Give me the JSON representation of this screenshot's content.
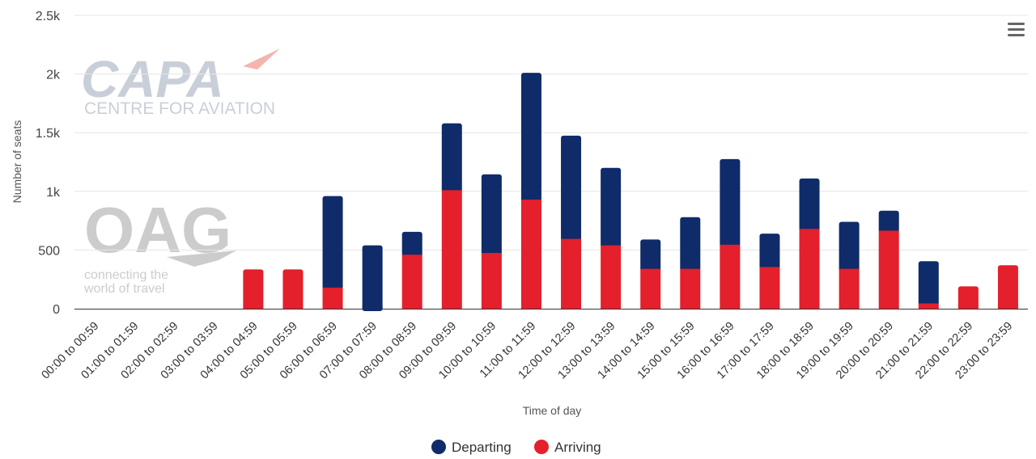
{
  "chart_data": {
    "type": "bar",
    "stacked": true,
    "xlabel": "Time of day",
    "ylabel": "Number of seats",
    "ylim": [
      0,
      2500
    ],
    "yticks": [
      0,
      500,
      1000,
      1500,
      2000,
      2500
    ],
    "ytick_labels": [
      "0",
      "500",
      "1k",
      "1.5k",
      "2k",
      "2.5k"
    ],
    "grid": true,
    "legend_position": "bottom-center",
    "categories": [
      "00:00 to 00:59",
      "01:00 to 01:59",
      "02:00 to 02:59",
      "03:00 to 03:59",
      "04:00 to 04:59",
      "05:00 to 05:59",
      "06:00 to 06:59",
      "07:00 to 07:59",
      "08:00 to 08:59",
      "09:00 to 09:59",
      "10:00 to 10:59",
      "11:00 to 11:59",
      "12:00 to 12:59",
      "13:00 to 13:59",
      "14:00 to 14:59",
      "15:00 to 15:59",
      "16:00 to 16:59",
      "17:00 to 17:59",
      "18:00 to 18:59",
      "19:00 to 19:59",
      "20:00 to 20:59",
      "21:00 to 21:59",
      "22:00 to 22:59",
      "23:00 to 23:59"
    ],
    "series": [
      {
        "name": "Departing",
        "color": "#0f2b6a",
        "values": [
          0,
          0,
          0,
          0,
          0,
          0,
          780,
          540,
          195,
          570,
          670,
          1080,
          880,
          660,
          250,
          440,
          730,
          285,
          430,
          400,
          170,
          360,
          0,
          0
        ]
      },
      {
        "name": "Arriving",
        "color": "#e3202b",
        "values": [
          0,
          0,
          0,
          0,
          335,
          335,
          180,
          0,
          460,
          1010,
          475,
          930,
          595,
          540,
          340,
          340,
          545,
          355,
          680,
          340,
          665,
          45,
          190,
          370
        ]
      }
    ]
  },
  "watermarks": {
    "capa_logo_text": "CAPA",
    "capa_subtitle": "CENTRE FOR AVIATION",
    "oag_logo_text": "OAG",
    "oag_tagline_1": "connecting the",
    "oag_tagline_2": "world of travel"
  },
  "colors": {
    "grid": "#e6e6e6",
    "axis": "#333333",
    "watermark": "#c8c8c8"
  },
  "icons": {
    "menu": "hamburger-menu-icon"
  }
}
